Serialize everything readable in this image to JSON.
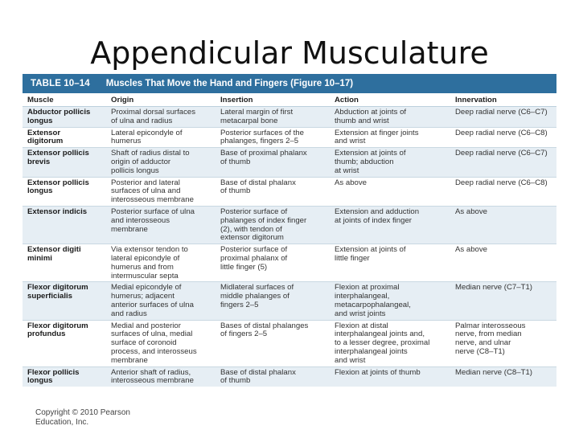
{
  "slide": {
    "title": "Appendicular Musculature",
    "copyright_line1": "Copyright © 2010 Pearson",
    "copyright_line2": "Education, Inc."
  },
  "table": {
    "label": "TABLE 10–14",
    "caption": "Muscles That Move the Hand and Fingers (Figure 10–17)",
    "headers": [
      "Muscle",
      "Origin",
      "Insertion",
      "Action",
      "Innervation"
    ],
    "rows": [
      {
        "muscle": "Abductor pollicis\nlongus",
        "origin": "Proximal dorsal surfaces\nof ulna and radius",
        "insertion": "Lateral margin of first\nmetacarpal bone",
        "action": "Abduction at joints of\nthumb and wrist",
        "innervation": "Deep radial nerve (C6–C7)"
      },
      {
        "muscle": "Extensor\ndigitorum",
        "origin": "Lateral epicondyle of\nhumerus",
        "insertion": "Posterior surfaces of the\nphalanges, fingers 2–5",
        "action": "Extension at finger joints\nand wrist",
        "innervation": "Deep radial nerve (C6–C8)"
      },
      {
        "muscle": "Extensor pollicis\nbrevis",
        "origin": "Shaft of radius distal to\norigin of adductor\npollicis longus",
        "insertion": "Base of proximal phalanx\nof thumb",
        "action": "Extension at joints of\nthumb; abduction\nat wrist",
        "innervation": "Deep radial nerve (C6–C7)"
      },
      {
        "muscle": "Extensor pollicis\nlongus",
        "origin": "Posterior and lateral\nsurfaces of ulna and\ninterosseous membrane",
        "insertion": "Base of distal phalanx\nof thumb",
        "action": "As above",
        "innervation": "Deep radial nerve (C6–C8)"
      },
      {
        "muscle": "Extensor indicis",
        "origin": "Posterior surface of ulna\nand interosseous\nmembrane",
        "insertion": "Posterior surface of\nphalanges of index finger\n(2), with tendon of\nextensor digitorum",
        "action": "Extension and adduction\nat joints of index finger",
        "innervation": "As above"
      },
      {
        "muscle": "Extensor digiti\nminimi",
        "origin": "Via extensor tendon to\nlateral epicondyle of\nhumerus and from\nintermuscular septa",
        "insertion": "Posterior surface of\nproximal phalanx of\nlittle finger (5)",
        "action": "Extension at joints of\nlittle finger",
        "innervation": "As above"
      },
      {
        "muscle": "Flexor digitorum\nsuperficialis",
        "origin": "Medial epicondyle of\nhumerus; adjacent\nanterior surfaces of ulna\nand radius",
        "insertion": "Midlateral surfaces of\nmiddle phalanges of\nfingers 2–5",
        "action": "Flexion at proximal\ninterphalangeal,\nmetacarpophalangeal,\nand wrist joints",
        "innervation": "Median nerve (C7–T1)"
      },
      {
        "muscle": "Flexor digitorum\nprofundus",
        "origin": "Medial and posterior\nsurfaces of ulna, medial\nsurface of coronoid\nprocess, and interosseus\nmembrane",
        "insertion": "Bases of distal phalanges\nof fingers 2–5",
        "action": "Flexion at distal\ninterphalangeal joints and,\nto a lesser degree, proximal\ninterphalangeal joints\nand wrist",
        "innervation": "Palmar interosseous\nnerve, from median\nnerve, and ulnar\nnerve (C8–T1)"
      },
      {
        "muscle": "Flexor pollicis\nlongus",
        "origin": "Anterior shaft of radius,\ninterosseous membrane",
        "insertion": "Base of distal phalanx\nof thumb",
        "action": "Flexion at joints of thumb",
        "innervation": "Median nerve (C8–T1)"
      }
    ]
  }
}
